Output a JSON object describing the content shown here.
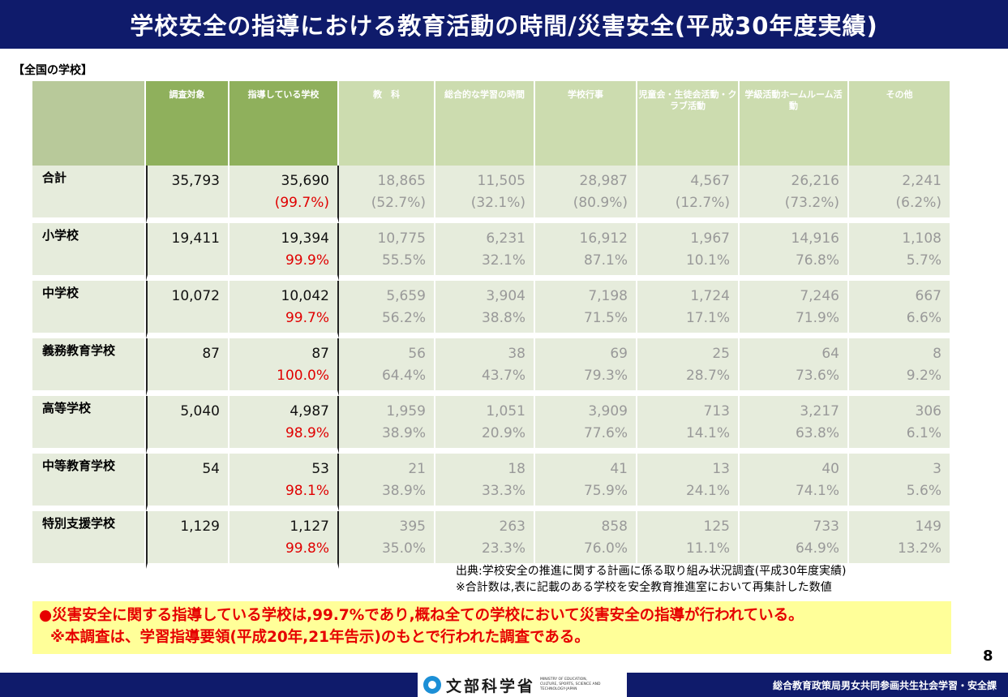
{
  "title": "学校安全の指導における教育活動の時間/災害安全(平成30年度実績)",
  "subtitle": "【全国の学校】",
  "table": {
    "headers": [
      "調査対象",
      "指導している学校",
      "教　科",
      "総合的な学習の時間",
      "学校行事",
      "児童会・生徒会活動・クラブ活動",
      "学級活動ホームルーム活動",
      "その他"
    ],
    "rows": [
      {
        "label": "合計",
        "target": "35,793",
        "teaching": "35,690",
        "teaching_pct": "(99.7%)",
        "cells": [
          [
            "18,865",
            "(52.7%)"
          ],
          [
            "11,505",
            "(32.1%)"
          ],
          [
            "28,987",
            "(80.9%)"
          ],
          [
            "4,567",
            "(12.7%)"
          ],
          [
            "26,216",
            "(73.2%)"
          ],
          [
            "2,241",
            "(6.2%)"
          ]
        ]
      },
      {
        "label": "小学校",
        "target": "19,411",
        "teaching": "19,394",
        "teaching_pct": "99.9%",
        "cells": [
          [
            "10,775",
            "55.5%"
          ],
          [
            "6,231",
            "32.1%"
          ],
          [
            "16,912",
            "87.1%"
          ],
          [
            "1,967",
            "10.1%"
          ],
          [
            "14,916",
            "76.8%"
          ],
          [
            "1,108",
            "5.7%"
          ]
        ]
      },
      {
        "label": "中学校",
        "target": "10,072",
        "teaching": "10,042",
        "teaching_pct": "99.7%",
        "cells": [
          [
            "5,659",
            "56.2%"
          ],
          [
            "3,904",
            "38.8%"
          ],
          [
            "7,198",
            "71.5%"
          ],
          [
            "1,724",
            "17.1%"
          ],
          [
            "7,246",
            "71.9%"
          ],
          [
            "667",
            "6.6%"
          ]
        ]
      },
      {
        "label": "義務教育学校",
        "target": "87",
        "teaching": "87",
        "teaching_pct": "100.0%",
        "cells": [
          [
            "56",
            "64.4%"
          ],
          [
            "38",
            "43.7%"
          ],
          [
            "69",
            "79.3%"
          ],
          [
            "25",
            "28.7%"
          ],
          [
            "64",
            "73.6%"
          ],
          [
            "8",
            "9.2%"
          ]
        ]
      },
      {
        "label": "高等学校",
        "target": "5,040",
        "teaching": "4,987",
        "teaching_pct": "98.9%",
        "cells": [
          [
            "1,959",
            "38.9%"
          ],
          [
            "1,051",
            "20.9%"
          ],
          [
            "3,909",
            "77.6%"
          ],
          [
            "713",
            "14.1%"
          ],
          [
            "3,217",
            "63.8%"
          ],
          [
            "306",
            "6.1%"
          ]
        ]
      },
      {
        "label": "中等教育学校",
        "target": "54",
        "teaching": "53",
        "teaching_pct": "98.1%",
        "cells": [
          [
            "21",
            "38.9%"
          ],
          [
            "18",
            "33.3%"
          ],
          [
            "41",
            "75.9%"
          ],
          [
            "13",
            "24.1%"
          ],
          [
            "40",
            "74.1%"
          ],
          [
            "3",
            "5.6%"
          ]
        ]
      },
      {
        "label": "特別支援学校",
        "target": "1,129",
        "teaching": "1,127",
        "teaching_pct": "99.8%",
        "cells": [
          [
            "395",
            "35.0%"
          ],
          [
            "263",
            "23.3%"
          ],
          [
            "858",
            "76.0%"
          ],
          [
            "125",
            "11.1%"
          ],
          [
            "733",
            "64.9%"
          ],
          [
            "149",
            "13.2%"
          ]
        ]
      }
    ]
  },
  "source_line1": "出典:学校安全の推進に関する計画に係る取り組み状況調査(平成30年度実績)",
  "source_line2": "※合計数は,表に記載のある学校を安全教育推進室において再集計した数値",
  "highlight_line1": "●災害安全に関する指導している学校は,99.7%であり,概ね全ての学校において災害安全の指導が行われている。",
  "highlight_line2": "※本調査は、学習指導要領(平成20年,21年告示)のもとで行われた調査である。",
  "page_number": "8",
  "footer_logo": "文部科学省",
  "footer_logo_small": "MINISTRY OF EDUCATION, CULTURE, SPORTS, SCIENCE AND TECHNOLOGY-JAPAN",
  "footer_right": "総合教育政策局男女共同参画共生社会学習・安全課"
}
